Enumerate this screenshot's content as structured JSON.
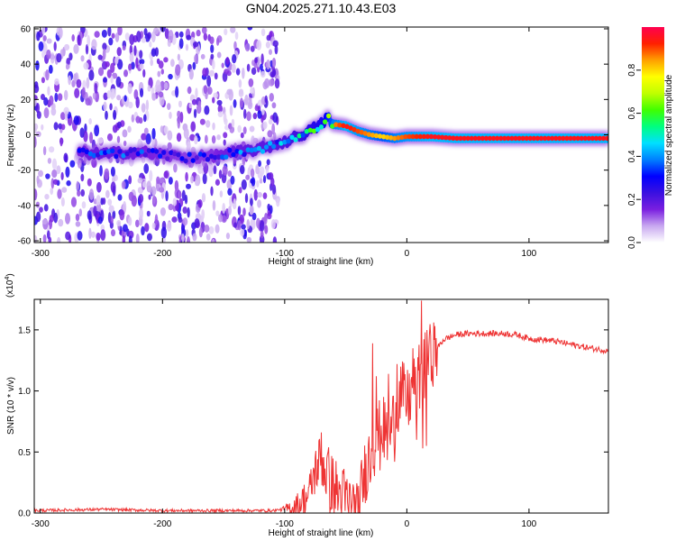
{
  "figure_title": "GN04.2025.271.10.43.E03",
  "chart_data": [
    {
      "type": "heatmap",
      "title": "GN04.2025.271.10.43.E03",
      "xlabel": "Height of straight line (km)",
      "ylabel": "Frequency (Hz)",
      "xlim": [
        -305,
        165
      ],
      "ylim": [
        -61,
        61
      ],
      "xticks": [
        -300,
        -200,
        -100,
        0,
        100
      ],
      "yticks": [
        -60,
        -40,
        -20,
        0,
        20,
        40,
        60
      ],
      "colorbar": {
        "label": "Normalized spectral amplitude",
        "range": [
          0,
          1
        ],
        "ticks": [
          0.0,
          0.2,
          0.4,
          0.6,
          0.8
        ],
        "tick_labels": [
          "0.0",
          "0.2",
          "0.4",
          "0.6",
          "0.8"
        ],
        "colors": [
          "#ffffff",
          "#c8a8f0",
          "#7a1fe0",
          "#3a10e0",
          "#0000ff",
          "#0080ff",
          "#00e0ff",
          "#00ff80",
          "#40ff00",
          "#c0ff00",
          "#ffff00",
          "#ffa000",
          "#ff2000",
          "#ff0050"
        ]
      },
      "noise_region_km": [
        -305,
        -105
      ],
      "ridge": {
        "x": [
          -268,
          -250,
          -230,
          -215,
          -180,
          -160,
          -140,
          -120,
          -100,
          -90,
          -80,
          -70,
          -65,
          -60,
          -50,
          -40,
          -30,
          -20,
          -10,
          0,
          20,
          40,
          60,
          80,
          100,
          120,
          140,
          165
        ],
        "y": [
          -10,
          -11,
          -10,
          -10,
          -13,
          -12,
          -10,
          -8,
          -4,
          -1,
          2,
          6,
          10,
          6,
          5,
          2,
          0,
          -1,
          -2,
          -1,
          -1,
          -2,
          -2,
          -2,
          -2,
          -2,
          -2,
          -2
        ],
        "amplitude": [
          0.35,
          0.4,
          0.38,
          0.35,
          0.3,
          0.32,
          0.4,
          0.42,
          0.45,
          0.5,
          0.55,
          0.6,
          0.7,
          0.85,
          0.95,
          0.9,
          0.85,
          0.8,
          0.85,
          0.9,
          0.95,
          0.95,
          0.95,
          0.95,
          0.95,
          0.95,
          0.95,
          0.95
        ]
      }
    },
    {
      "type": "line",
      "title": "",
      "xlabel": "Height of straight line (km)",
      "ylabel": "SNR (10 * v/v)",
      "y_multiplier_label": "(x10",
      "y_multiplier_exponent": "4",
      "xlim": [
        -305,
        165
      ],
      "ylim": [
        0,
        1.75
      ],
      "xticks": [
        -300,
        -200,
        -100,
        0,
        100
      ],
      "yticks": [
        0.0,
        0.5,
        1.0,
        1.5
      ],
      "ytick_labels": [
        "0.0",
        "0.5",
        "1.0",
        "1.5"
      ],
      "series": [
        {
          "name": "SNR",
          "color": "#ee3333",
          "x": [
            -305,
            -250,
            -200,
            -150,
            -110,
            -100,
            -90,
            -80,
            -75,
            -70,
            -65,
            -60,
            -55,
            -50,
            -45,
            -40,
            -35,
            -30,
            -25,
            -20,
            -15,
            -10,
            -5,
            0,
            5,
            10,
            15,
            20,
            25,
            30,
            40,
            50,
            60,
            70,
            80,
            90,
            100,
            110,
            120,
            130,
            140,
            150,
            165
          ],
          "y": [
            0.02,
            0.03,
            0.02,
            0.02,
            0.02,
            0.03,
            0.06,
            0.15,
            0.35,
            0.45,
            0.3,
            0.2,
            0.15,
            0.1,
            0.05,
            0.02,
            0.3,
            0.5,
            0.6,
            0.7,
            0.6,
            0.8,
            1.0,
            0.9,
            1.0,
            1.1,
            1.2,
            1.3,
            1.35,
            1.42,
            1.46,
            1.47,
            1.47,
            1.47,
            1.47,
            1.46,
            1.43,
            1.42,
            1.41,
            1.39,
            1.37,
            1.35,
            1.33
          ],
          "spikes": [
            {
              "x": -70,
              "y": 0.66
            },
            {
              "x": -65,
              "y": 0.48
            },
            {
              "x": -28,
              "y": 1.39
            },
            {
              "x": -25,
              "y": 1.12
            },
            {
              "x": -15,
              "y": 1.14
            },
            {
              "x": -8,
              "y": 1.22
            },
            {
              "x": 5,
              "y": 1.35
            },
            {
              "x": 12,
              "y": 1.74
            },
            {
              "x": 15,
              "y": 1.48
            },
            {
              "x": 18,
              "y": 1.36
            }
          ],
          "dips": [
            {
              "x": -40,
              "y": 0.0
            },
            {
              "x": -45,
              "y": 0.05
            },
            {
              "x": -30,
              "y": 0.25
            },
            {
              "x": -22,
              "y": 0.35
            },
            {
              "x": -10,
              "y": 0.42
            },
            {
              "x": 8,
              "y": 0.6
            },
            {
              "x": 13,
              "y": 0.53
            },
            {
              "x": 16,
              "y": 0.55
            }
          ]
        }
      ]
    }
  ]
}
